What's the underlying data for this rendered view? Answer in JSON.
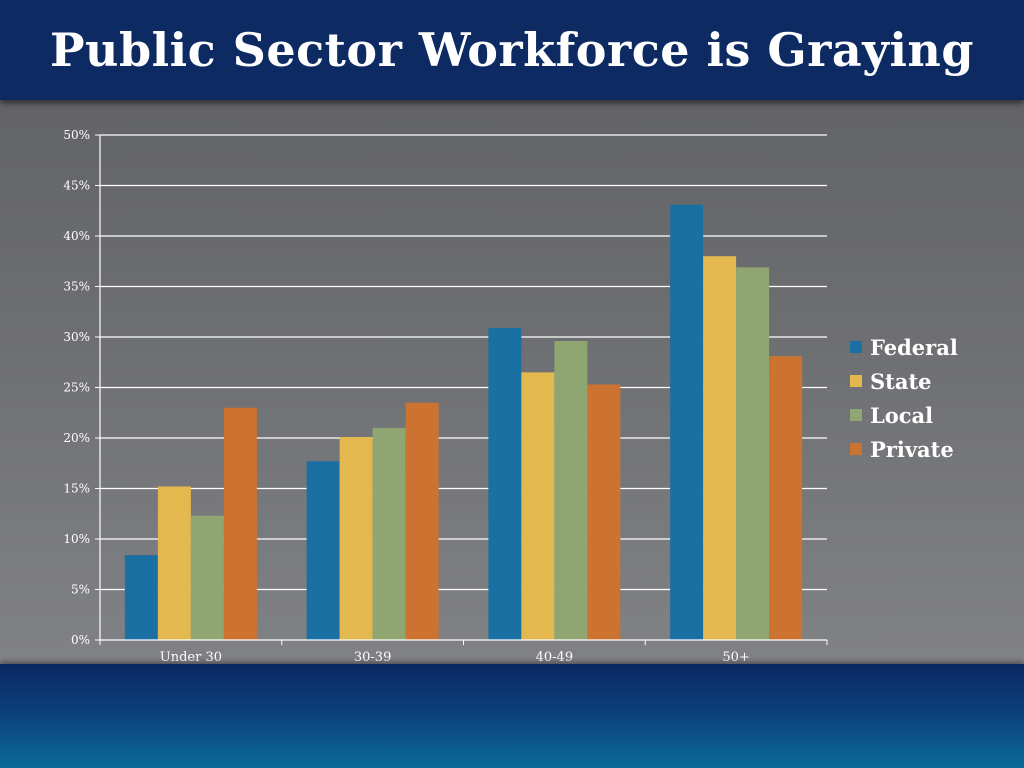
{
  "title": "Public Sector Workforce is Graying",
  "chart_data": {
    "type": "bar",
    "categories": [
      "Under 30",
      "30-39",
      "40-49",
      "50+"
    ],
    "series": [
      {
        "name": "Federal",
        "color": "#1a6fa3",
        "values": [
          8.4,
          17.7,
          30.9,
          43.1
        ]
      },
      {
        "name": "State",
        "color": "#e3b94f",
        "values": [
          15.2,
          20.1,
          26.5,
          38.0
        ]
      },
      {
        "name": "Local",
        "color": "#8fa673",
        "values": [
          12.3,
          21.0,
          29.6,
          36.9
        ]
      },
      {
        "name": "Private",
        "color": "#cc7332",
        "values": [
          23.0,
          23.5,
          25.3,
          28.1
        ]
      }
    ],
    "yticks": [
      "0%",
      "5%",
      "10%",
      "15%",
      "20%",
      "25%",
      "30%",
      "35%",
      "40%",
      "45%",
      "50%"
    ],
    "ylim": [
      0,
      50
    ],
    "ystep": 5,
    "grid": true,
    "legend_position": "right"
  }
}
